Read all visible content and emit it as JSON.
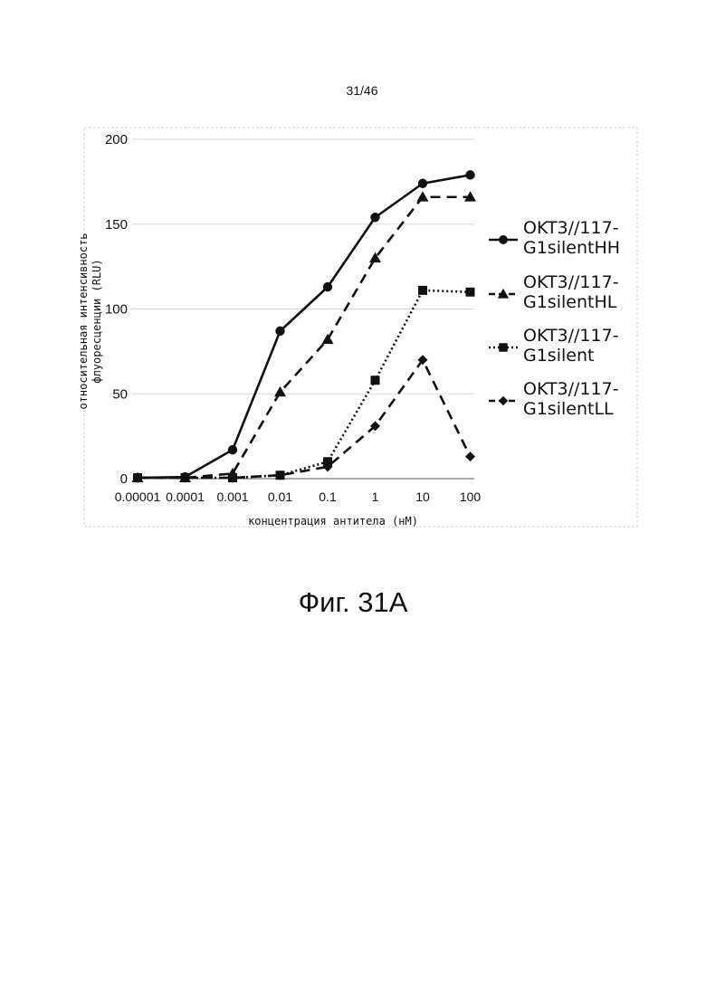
{
  "page": {
    "number": "31/46",
    "caption": "Фиг. 31A"
  },
  "chart_data": {
    "type": "line",
    "title": "",
    "xlabel": "концентрация антитела (нМ)",
    "ylabel_lines": [
      "относительная интенсивность",
      "флуоресценции (RLU)"
    ],
    "x_scale": "categorical (log-spaced)",
    "categories": [
      "0.00001",
      "0.0001",
      "0.001",
      "0.01",
      "0.1",
      "1",
      "10",
      "100"
    ],
    "ylim": [
      0,
      200
    ],
    "yticks": [
      0,
      50,
      100,
      150,
      200
    ],
    "grid": "horizontal",
    "legend_position": "right",
    "series": [
      {
        "name_lines": [
          "OKT3//117-",
          "G1silentHH"
        ],
        "marker": "circle",
        "line_style": "solid",
        "values": [
          0.5,
          1,
          17,
          87,
          113,
          154,
          174,
          179
        ]
      },
      {
        "name_lines": [
          "OKT3//117-",
          "G1silentHL"
        ],
        "marker": "triangle",
        "line_style": "dashed",
        "values": [
          0.5,
          0.5,
          3,
          51,
          82,
          130,
          166,
          166
        ]
      },
      {
        "name_lines": [
          "OKT3//117-",
          "G1silent"
        ],
        "marker": "square",
        "line_style": "dotted",
        "values": [
          0.5,
          0.5,
          0.5,
          2,
          10,
          58,
          111,
          110
        ]
      },
      {
        "name_lines": [
          "OKT3//117-",
          "G1silentLL"
        ],
        "marker": "diamond",
        "line_style": "dashed",
        "values": [
          0.5,
          0.5,
          0.5,
          2,
          7,
          31,
          70,
          13
        ]
      }
    ]
  }
}
